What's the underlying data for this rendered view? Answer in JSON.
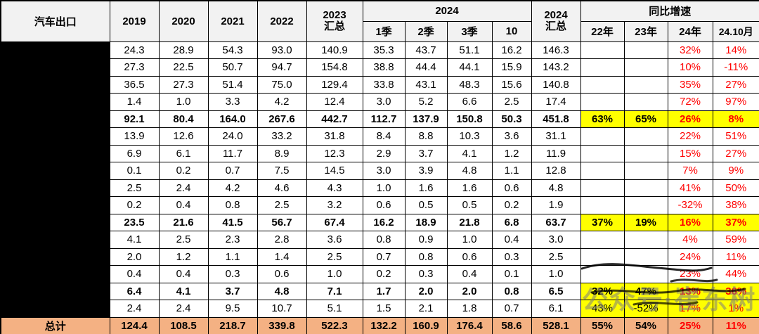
{
  "chart_data": {
    "type": "table",
    "title": "汽车出口",
    "header": {
      "row_label": "汽车出口",
      "years": [
        "2019",
        "2020",
        "2021",
        "2022"
      ],
      "total_2023": "2023\n汇总",
      "group_2024": "2024",
      "sub_2024": [
        "1季",
        "2季",
        "3季",
        "10"
      ],
      "total_2024": "2024\n汇总",
      "growth_label": "同比增速",
      "growth_sub": [
        "22年",
        "23年",
        "24年",
        "24.10月"
      ]
    },
    "rows": [
      {
        "values": [
          "24.3",
          "28.9",
          "54.3",
          "93.0",
          "140.9",
          "35.3",
          "43.7",
          "51.1",
          "16.2",
          "146.3"
        ],
        "growth": [
          "",
          "",
          "32%",
          "14%"
        ],
        "bold": false,
        "hl": false
      },
      {
        "values": [
          "27.3",
          "22.5",
          "50.7",
          "94.7",
          "154.8",
          "38.8",
          "44.4",
          "44.1",
          "15.9",
          "143.2"
        ],
        "growth": [
          "",
          "",
          "10%",
          "-11%"
        ],
        "bold": false,
        "hl": false
      },
      {
        "values": [
          "36.5",
          "27.3",
          "51.4",
          "75.0",
          "129.4",
          "33.8",
          "43.1",
          "48.3",
          "15.6",
          "140.8"
        ],
        "growth": [
          "",
          "",
          "35%",
          "27%"
        ],
        "bold": false,
        "hl": false
      },
      {
        "values": [
          "1.4",
          "1.0",
          "3.3",
          "4.2",
          "12.4",
          "3.0",
          "5.2",
          "6.6",
          "2.5",
          "17.4"
        ],
        "growth": [
          "",
          "",
          "72%",
          "97%"
        ],
        "bold": false,
        "hl": false
      },
      {
        "values": [
          "92.1",
          "80.4",
          "164.0",
          "267.6",
          "442.7",
          "112.7",
          "137.9",
          "150.8",
          "50.3",
          "451.8"
        ],
        "growth": [
          "63%",
          "65%",
          "26%",
          "8%"
        ],
        "bold": true,
        "hl": true
      },
      {
        "values": [
          "13.9",
          "12.6",
          "24.0",
          "33.2",
          "31.8",
          "8.4",
          "8.8",
          "10.3",
          "3.6",
          "31.1"
        ],
        "growth": [
          "",
          "",
          "22%",
          "51%"
        ],
        "bold": false,
        "hl": false
      },
      {
        "values": [
          "6.9",
          "6.1",
          "11.7",
          "8.9",
          "12.3",
          "2.9",
          "3.7",
          "4.1",
          "1.2",
          "11.9"
        ],
        "growth": [
          "",
          "",
          "15%",
          "27%"
        ],
        "bold": false,
        "hl": false
      },
      {
        "values": [
          "0.1",
          "0.2",
          "0.7",
          "7.5",
          "14.5",
          "3.0",
          "3.9",
          "4.8",
          "1.1",
          "12.8"
        ],
        "growth": [
          "",
          "",
          "7%",
          "9%"
        ],
        "bold": false,
        "hl": false
      },
      {
        "values": [
          "2.5",
          "2.4",
          "4.2",
          "4.6",
          "4.3",
          "1.0",
          "1.6",
          "1.6",
          "0.6",
          "4.8"
        ],
        "growth": [
          "",
          "",
          "41%",
          "50%"
        ],
        "bold": false,
        "hl": false
      },
      {
        "values": [
          "0.2",
          "0.4",
          "0.8",
          "2.5",
          "3.2",
          "0.6",
          "0.5",
          "0.5",
          "0.2",
          "1.9"
        ],
        "growth": [
          "",
          "",
          "-32%",
          "38%"
        ],
        "bold": false,
        "hl": false
      },
      {
        "values": [
          "23.5",
          "21.6",
          "41.5",
          "56.7",
          "67.4",
          "16.2",
          "18.9",
          "21.8",
          "6.8",
          "63.7"
        ],
        "growth": [
          "37%",
          "19%",
          "16%",
          "37%"
        ],
        "bold": true,
        "hl": true
      },
      {
        "values": [
          "4.1",
          "2.5",
          "2.3",
          "2.8",
          "3.6",
          "0.8",
          "0.9",
          "1.0",
          "0.4",
          "3.0"
        ],
        "growth": [
          "",
          "",
          "4%",
          "59%"
        ],
        "bold": false,
        "hl": false
      },
      {
        "values": [
          "2.0",
          "1.2",
          "1.1",
          "1.4",
          "2.5",
          "0.7",
          "0.8",
          "0.6",
          "0.3",
          "2.5"
        ],
        "growth": [
          "",
          "",
          "24%",
          "11%"
        ],
        "bold": false,
        "hl": false
      },
      {
        "values": [
          "0.4",
          "0.4",
          "0.3",
          "0.6",
          "1.0",
          "0.2",
          "0.3",
          "0.4",
          "0.1",
          "1.0"
        ],
        "growth": [
          "",
          "",
          "23%",
          "44%"
        ],
        "bold": false,
        "hl": false
      },
      {
        "values": [
          "6.4",
          "4.1",
          "3.7",
          "4.8",
          "7.1",
          "1.7",
          "2.0",
          "2.0",
          "0.8",
          "6.5"
        ],
        "growth": [
          "32%",
          "47%",
          "13%",
          "36%"
        ],
        "bold": true,
        "hl": true
      },
      {
        "values": [
          "2.4",
          "2.4",
          "9.5",
          "10.7",
          "5.1",
          "1.5",
          "2.1",
          "1.8",
          "0.7",
          "6.1"
        ],
        "growth": [
          "43%",
          "-52%",
          "17%",
          "1%"
        ],
        "bold": false,
        "hl": true
      }
    ],
    "total": {
      "label": "总计",
      "values": [
        "124.4",
        "108.5",
        "218.7",
        "339.8",
        "522.3",
        "132.2",
        "160.9",
        "176.4",
        "58.6",
        "528.1"
      ],
      "growth": [
        "55%",
        "54%",
        "25%",
        "11%"
      ]
    }
  },
  "watermark": "公众号·崔东树",
  "colors": {
    "highlight": "#ffff00",
    "growth_red": "#ff0000",
    "total_bg": "#f4b183",
    "header_bg": "#f2f2f2",
    "redaction": "#000000"
  }
}
